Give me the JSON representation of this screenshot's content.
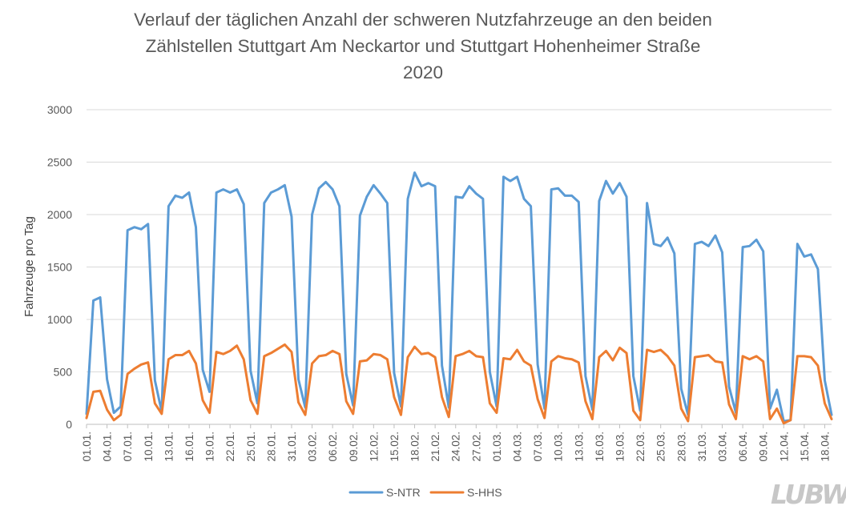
{
  "chart_data": {
    "type": "line",
    "title_lines": [
      "Verlauf der täglichen Anzahl der schweren Nutzfahrzeuge an den beiden",
      "Zählstellen Stuttgart Am Neckartor und Stuttgart Hohenheimer Straße",
      "2020"
    ],
    "ylabel": "Fahrzeuge pro Tag",
    "xlabel": "",
    "ylim": [
      0,
      3000
    ],
    "yticks": [
      "0",
      "500",
      "1000",
      "1500",
      "2000",
      "2500",
      "3000"
    ],
    "grid": "horizontal",
    "legend": "bottom",
    "x_tick_labels": [
      "01.01.",
      "04.01.",
      "07.01.",
      "10.01.",
      "13.01.",
      "16.01.",
      "19.01.",
      "22.01.",
      "25.01.",
      "28.01.",
      "31.01.",
      "03.02.",
      "06.02.",
      "09.02.",
      "12.02.",
      "15.02.",
      "18.02.",
      "21.02.",
      "24.02.",
      "27.02.",
      "01.03.",
      "04.03.",
      "07.03.",
      "10.03.",
      "13.03.",
      "16.03.",
      "19.03.",
      "22.03.",
      "25.03.",
      "28.03.",
      "31.03.",
      "03.04.",
      "06.04.",
      "09.04.",
      "12.04.",
      "15.04.",
      "18.04."
    ],
    "x": [
      "01.01.",
      "02.01.",
      "03.01.",
      "04.01.",
      "05.01.",
      "06.01.",
      "07.01.",
      "08.01.",
      "09.01.",
      "10.01.",
      "11.01.",
      "12.01.",
      "13.01.",
      "14.01.",
      "15.01.",
      "16.01.",
      "17.01.",
      "18.01.",
      "19.01.",
      "20.01.",
      "21.01.",
      "22.01.",
      "23.01.",
      "24.01.",
      "25.01.",
      "26.01.",
      "27.01.",
      "28.01.",
      "29.01.",
      "30.01.",
      "31.01.",
      "01.02.",
      "02.02.",
      "03.02.",
      "04.02.",
      "05.02.",
      "06.02.",
      "07.02.",
      "08.02.",
      "09.02.",
      "10.02.",
      "11.02.",
      "12.02.",
      "13.02.",
      "14.02.",
      "15.02.",
      "16.02.",
      "17.02.",
      "18.02.",
      "19.02.",
      "20.02.",
      "21.02.",
      "22.02.",
      "23.02.",
      "24.02.",
      "25.02.",
      "26.02.",
      "27.02.",
      "28.02.",
      "29.02.",
      "01.03.",
      "02.03.",
      "03.03.",
      "04.03.",
      "05.03.",
      "06.03.",
      "07.03.",
      "08.03.",
      "09.03.",
      "10.03.",
      "11.03.",
      "12.03.",
      "13.03.",
      "14.03.",
      "15.03.",
      "16.03.",
      "17.03.",
      "18.03.",
      "19.03.",
      "20.03.",
      "21.03.",
      "22.03.",
      "23.03.",
      "24.03.",
      "25.03.",
      "26.03.",
      "27.03.",
      "28.03.",
      "29.03.",
      "30.03.",
      "31.03.",
      "01.04.",
      "02.04.",
      "03.04.",
      "04.04.",
      "05.04.",
      "06.04.",
      "07.04.",
      "08.04.",
      "09.04.",
      "10.04.",
      "11.04.",
      "12.04.",
      "13.04.",
      "14.04.",
      "15.04.",
      "16.04.",
      "17.04.",
      "18.04.",
      "19.04."
    ],
    "series": [
      {
        "name": "S-NTR",
        "color": "#5B9BD5",
        "values": [
          100,
          1180,
          1210,
          430,
          110,
          170,
          1850,
          1880,
          1860,
          1910,
          420,
          120,
          2080,
          2180,
          2160,
          2210,
          1880,
          520,
          310,
          2210,
          2240,
          2210,
          2240,
          2100,
          510,
          200,
          2110,
          2210,
          2240,
          2280,
          1980,
          430,
          160,
          2000,
          2250,
          2310,
          2240,
          2080,
          480,
          180,
          1990,
          2170,
          2280,
          2200,
          2110,
          490,
          170,
          2150,
          2400,
          2270,
          2300,
          2270,
          560,
          160,
          2170,
          2160,
          2270,
          2200,
          2150,
          500,
          170,
          2360,
          2320,
          2360,
          2150,
          2080,
          570,
          150,
          2240,
          2250,
          2180,
          2180,
          2120,
          460,
          140,
          2130,
          2320,
          2200,
          2300,
          2170,
          460,
          130,
          2110,
          1720,
          1700,
          1780,
          1630,
          340,
          90,
          1720,
          1740,
          1700,
          1800,
          1640,
          360,
          110,
          1690,
          1700,
          1760,
          1650,
          150,
          330,
          30,
          40,
          1720,
          1600,
          1620,
          1480,
          420,
          90
        ]
      },
      {
        "name": "S-HHS",
        "color": "#ED7D31",
        "values": [
          60,
          310,
          320,
          140,
          40,
          90,
          480,
          530,
          570,
          590,
          200,
          100,
          620,
          660,
          660,
          700,
          580,
          230,
          110,
          690,
          670,
          700,
          750,
          620,
          230,
          100,
          650,
          680,
          720,
          760,
          690,
          210,
          90,
          580,
          650,
          660,
          700,
          670,
          220,
          100,
          600,
          610,
          670,
          660,
          620,
          260,
          90,
          640,
          740,
          670,
          680,
          640,
          260,
          70,
          650,
          670,
          700,
          650,
          640,
          200,
          110,
          630,
          620,
          710,
          600,
          560,
          240,
          60,
          600,
          650,
          630,
          620,
          590,
          220,
          50,
          640,
          700,
          610,
          730,
          680,
          130,
          40,
          710,
          690,
          710,
          650,
          560,
          150,
          30,
          640,
          650,
          660,
          600,
          590,
          190,
          50,
          650,
          620,
          650,
          600,
          50,
          150,
          10,
          40,
          650,
          650,
          640,
          560,
          200,
          50
        ]
      }
    ]
  },
  "logo": {
    "text": "LUBW"
  }
}
